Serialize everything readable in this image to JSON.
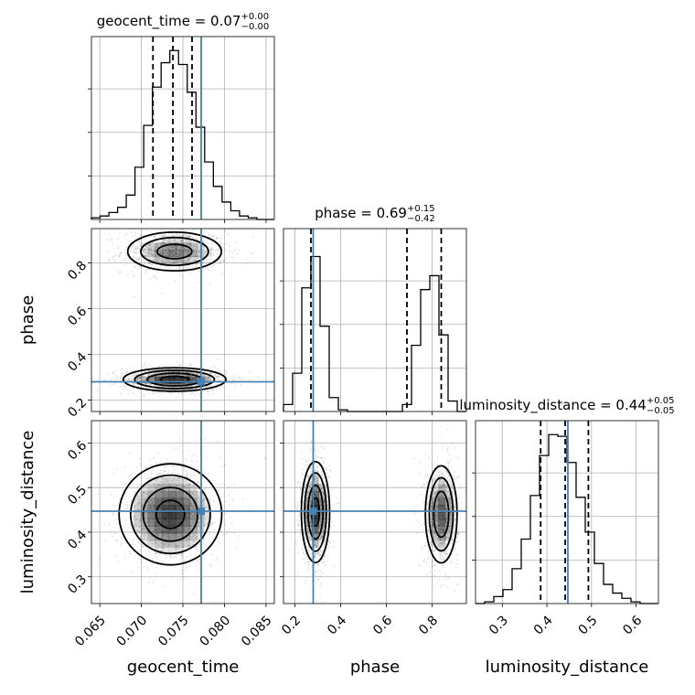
{
  "chart_data": {
    "type": "corner",
    "parameters": [
      {
        "key": "geocent_time",
        "label": "geocent_time",
        "range": [
          0.064,
          0.086
        ],
        "ticks": [
          {
            "v": 0.065,
            "t": "0.065"
          },
          {
            "v": 0.07,
            "t": "0.070"
          },
          {
            "v": 0.075,
            "t": "0.075"
          },
          {
            "v": 0.08,
            "t": "0.080"
          },
          {
            "v": 0.085,
            "t": "0.085"
          }
        ],
        "truth": 0.0772,
        "quantiles": [
          0.0714,
          0.0738,
          0.0761
        ],
        "title_main": "geocent_time = 0.07",
        "title_sup": "+0.00",
        "title_sub": "−0.00",
        "hist_max": 1.0,
        "hist": [
          0.01,
          0.02,
          0.04,
          0.07,
          0.14,
          0.3,
          0.54,
          0.76,
          0.9,
          0.97,
          0.89,
          0.73,
          0.53,
          0.33,
          0.19,
          0.1,
          0.05,
          0.02,
          0.01,
          0.0,
          0.0
        ],
        "hist_yticks": [
          0.25,
          0.5,
          0.75
        ]
      },
      {
        "key": "phase",
        "label": "phase",
        "range": [
          0.15,
          0.95
        ],
        "ticks": [
          {
            "v": 0.2,
            "t": "0.2"
          },
          {
            "v": 0.4,
            "t": "0.4"
          },
          {
            "v": 0.6,
            "t": "0.6"
          },
          {
            "v": 0.8,
            "t": "0.8"
          }
        ],
        "truth": 0.28,
        "quantiles": [
          0.27,
          0.69,
          0.84
        ],
        "title_main": "phase = 0.69",
        "title_sup": "+0.15",
        "title_sub": "−0.42",
        "hist_max": 1.0,
        "hist": [
          0.04,
          0.22,
          0.71,
          0.89,
          0.49,
          0.08,
          0.01,
          0.0,
          0.0,
          0.0,
          0.0,
          0.0,
          0.0,
          0.04,
          0.38,
          0.7,
          0.78,
          0.44,
          0.06,
          0.0
        ],
        "hist_yticks": [
          0.25,
          0.5,
          0.75
        ]
      },
      {
        "key": "luminosity_distance",
        "label": "luminosity_distance",
        "range": [
          0.24,
          0.65
        ],
        "ticks": [
          {
            "v": 0.3,
            "t": "0.3"
          },
          {
            "v": 0.4,
            "t": "0.4"
          },
          {
            "v": 0.5,
            "t": "0.5"
          },
          {
            "v": 0.6,
            "t": "0.6"
          }
        ],
        "truth": 0.447,
        "quantiles": [
          0.386,
          0.441,
          0.493
        ],
        "title_main": "luminosity_distance = 0.44",
        "title_sup": "+0.05",
        "title_sub": "−0.05",
        "hist_max": 1.0,
        "hist": [
          0.0,
          0.01,
          0.04,
          0.08,
          0.2,
          0.37,
          0.62,
          0.85,
          0.97,
          0.96,
          0.81,
          0.61,
          0.41,
          0.23,
          0.11,
          0.06,
          0.03,
          0.01,
          0.0,
          0.0
        ],
        "hist_yticks": [
          0.25,
          0.5,
          0.75
        ]
      }
    ],
    "pairs": [
      {
        "x": "geocent_time",
        "y": "phase",
        "modes": [
          {
            "cx": 0.074,
            "cy": 0.85,
            "sx": 0.003,
            "sy": 0.045,
            "w": 0.7
          },
          {
            "cx": 0.074,
            "cy": 0.29,
            "sx": 0.003,
            "sy": 0.025,
            "w": 1.0
          }
        ]
      },
      {
        "x": "geocent_time",
        "y": "luminosity_distance",
        "modes": [
          {
            "cx": 0.0735,
            "cy": 0.44,
            "sx": 0.003,
            "sy": 0.055,
            "w": 1.0
          }
        ]
      },
      {
        "x": "phase",
        "y": "luminosity_distance",
        "modes": [
          {
            "cx": 0.29,
            "cy": 0.445,
            "sx": 0.03,
            "sy": 0.055,
            "w": 1.0
          },
          {
            "cx": 0.84,
            "cy": 0.44,
            "sx": 0.035,
            "sy": 0.055,
            "w": 0.85
          }
        ]
      }
    ],
    "contour_levels": [
      0.85,
      0.55,
      0.28,
      0.12
    ],
    "truth_color": "#4682b4",
    "grid": true
  }
}
